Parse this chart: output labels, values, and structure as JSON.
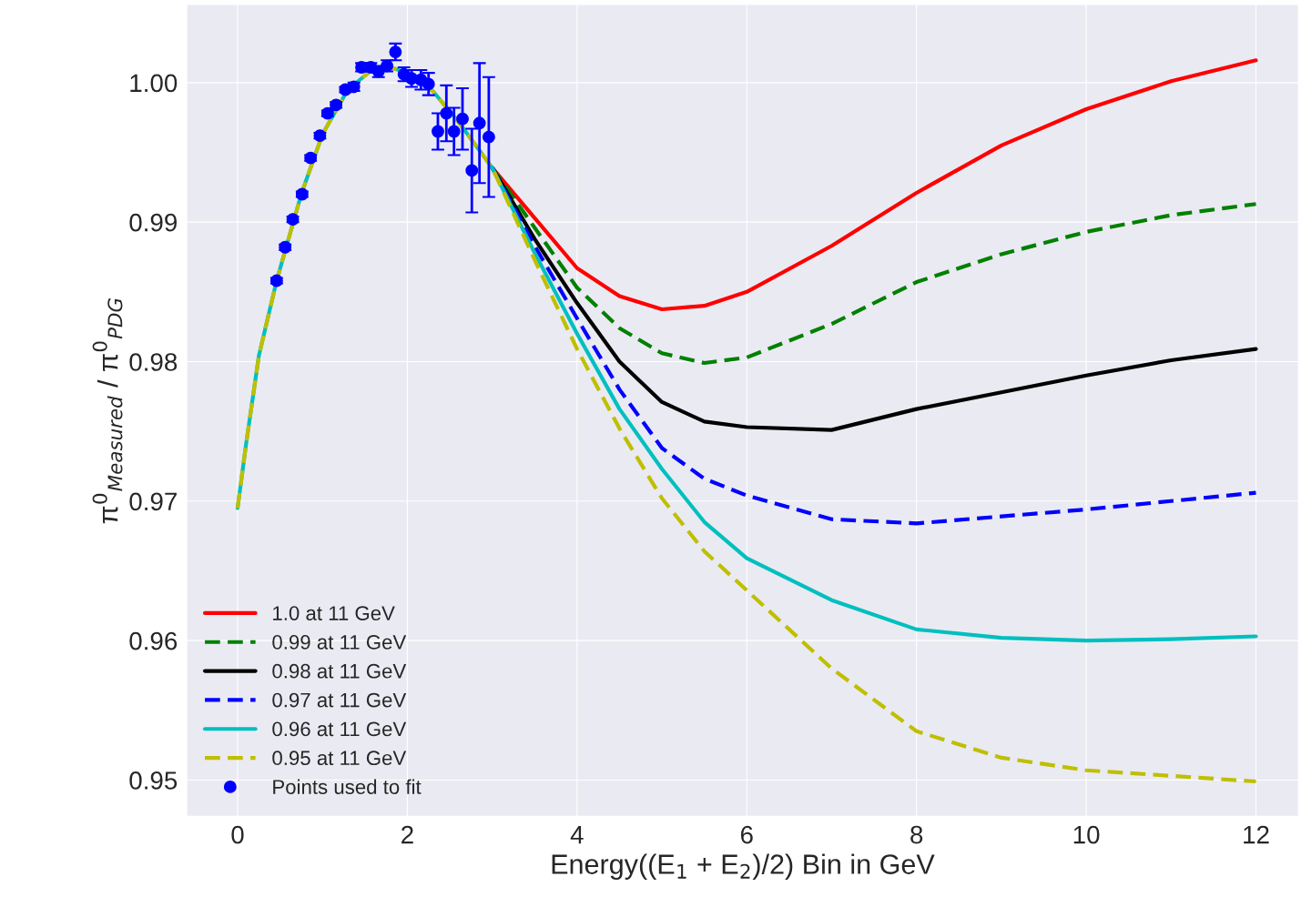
{
  "chart_data": {
    "type": "line",
    "xlabel": "Energy((E$_{1}$ + E$_{2}$)/2) Bin in GeV",
    "ylabel": "π$^{0}$$_{Measured}$ / π$^{0}$$_{PDG}$",
    "xlim": [
      -0.6,
      12.5
    ],
    "ylim": [
      0.9474,
      1.0056
    ],
    "xticks": [
      0,
      2,
      4,
      6,
      8,
      10,
      12
    ],
    "yticks": [
      {
        "value": 0.95,
        "label": "0.95"
      },
      {
        "value": 0.96,
        "label": "0.96"
      },
      {
        "value": 0.97,
        "label": "0.97"
      },
      {
        "value": 0.98,
        "label": "0.98"
      },
      {
        "value": 0.99,
        "label": "0.99"
      },
      {
        "value": 1.0,
        "label": "1.00"
      }
    ],
    "grid": true,
    "legend": "bottom left",
    "series": [
      {
        "name": "1.0 at 11 GeV",
        "color": "#ff0000",
        "line_style": "solid",
        "x": [
          3.0,
          3.5,
          4,
          4.5,
          5,
          5.5,
          6,
          7,
          8,
          9,
          10,
          11,
          12
        ],
        "values": [
          0.9939,
          0.9903,
          0.9867,
          0.9847,
          0.98375,
          0.984,
          0.985,
          0.9883,
          0.9921,
          0.9955,
          0.9981,
          1.0001,
          1.0016
        ]
      },
      {
        "name": "0.99 at 11 GeV",
        "color": "#008000",
        "line_style": "dashed",
        "x": [
          3.0,
          3.5,
          4,
          4.5,
          5,
          5.5,
          6,
          7,
          8,
          9,
          10,
          11,
          12
        ],
        "values": [
          0.9939,
          0.9896,
          0.9853,
          0.9824,
          0.9806,
          0.9799,
          0.9803,
          0.9827,
          0.9857,
          0.9877,
          0.9893,
          0.9905,
          0.9913
        ]
      },
      {
        "name": "0.98 at 11 GeV",
        "color": "#000000",
        "line_style": "solid",
        "x": [
          3.0,
          3.5,
          4,
          4.5,
          5,
          5.5,
          6,
          7,
          8,
          9,
          10,
          11,
          12
        ],
        "values": [
          0.9939,
          0.9888,
          0.9842,
          0.98,
          0.9771,
          0.9757,
          0.9753,
          0.9751,
          0.9766,
          0.9778,
          0.979,
          0.9801,
          0.9809
        ]
      },
      {
        "name": "0.97 at 11 GeV",
        "color": "#0000ff",
        "line_style": "dashed",
        "x": [
          3.0,
          3.5,
          4,
          4.5,
          5,
          5.5,
          6,
          7,
          8,
          9,
          10,
          11,
          12
        ],
        "values": [
          0.9939,
          0.9883,
          0.9831,
          0.978,
          0.9738,
          0.9716,
          0.9704,
          0.9687,
          0.9684,
          0.9689,
          0.9694,
          0.97,
          0.9706
        ]
      },
      {
        "name": "0.96 at 11 GeV",
        "color": "#00bfbf",
        "line_style": "solid",
        "x": [
          0,
          0.1,
          0.25,
          0.46,
          0.75,
          1.0,
          1.3,
          1.6,
          1.75,
          2.0,
          2.3,
          2.6,
          3.0,
          3.5,
          4,
          4.5,
          5,
          5.5,
          6,
          7,
          8,
          9,
          10,
          11,
          12
        ],
        "values": [
          0.9695,
          0.9741,
          0.9804,
          0.9858,
          0.992,
          0.9963,
          0.9995,
          1.001,
          1.0012,
          1.0007,
          0.9994,
          0.9972,
          0.9939,
          0.9878,
          0.982,
          0.9766,
          0.9723,
          0.9685,
          0.9659,
          0.9629,
          0.9608,
          0.9602,
          0.96,
          0.9601,
          0.9603
        ]
      },
      {
        "name": "0.95 at 11 GeV",
        "color": "#bfbf00",
        "line_style": "dashed",
        "x": [
          0,
          0.1,
          0.25,
          0.46,
          0.75,
          1.0,
          1.3,
          1.6,
          1.75,
          2.0,
          2.3,
          2.6,
          3.0,
          3.5,
          4,
          4.5,
          5,
          5.5,
          6,
          7,
          8,
          9,
          10,
          11,
          12
        ],
        "values": [
          0.9695,
          0.9741,
          0.9804,
          0.9858,
          0.992,
          0.9963,
          0.9995,
          1.001,
          1.0012,
          1.0007,
          0.9994,
          0.9972,
          0.9939,
          0.9873,
          0.9809,
          0.9752,
          0.9702,
          0.9664,
          0.9636,
          0.958,
          0.9535,
          0.9516,
          0.9507,
          0.9503,
          0.9499
        ]
      },
      {
        "name": "Points used to fit",
        "type": "scatter",
        "color": "#0000ff",
        "marker": "circle",
        "x": [
          0.46,
          0.56,
          0.65,
          0.76,
          0.86,
          0.97,
          1.06,
          1.16,
          1.27,
          1.37,
          1.46,
          1.57,
          1.66,
          1.76,
          1.86,
          1.96,
          2.05,
          2.16,
          2.25,
          2.36,
          2.46,
          2.55,
          2.65,
          2.76,
          2.85,
          2.96
        ],
        "values": [
          0.9858,
          0.9882,
          0.9902,
          0.992,
          0.9946,
          0.9962,
          0.9978,
          0.9984,
          0.9995,
          0.9997,
          1.0011,
          1.0011,
          1.0008,
          1.0012,
          1.0022,
          1.0006,
          1.0003,
          1.0002,
          0.9999,
          0.9965,
          0.9978,
          0.9965,
          0.9974,
          0.9937,
          0.9971,
          0.9961
        ],
        "errors": [
          0.0002,
          0.0002,
          0.0002,
          0.0002,
          0.0002,
          0.0002,
          0.0002,
          0.0002,
          0.0002,
          0.0003,
          0.0003,
          0.0003,
          0.0004,
          0.0004,
          0.0006,
          0.0005,
          0.0006,
          0.0007,
          0.0008,
          0.0013,
          0.002,
          0.0017,
          0.0022,
          0.003,
          0.0043,
          0.0043
        ]
      }
    ]
  }
}
